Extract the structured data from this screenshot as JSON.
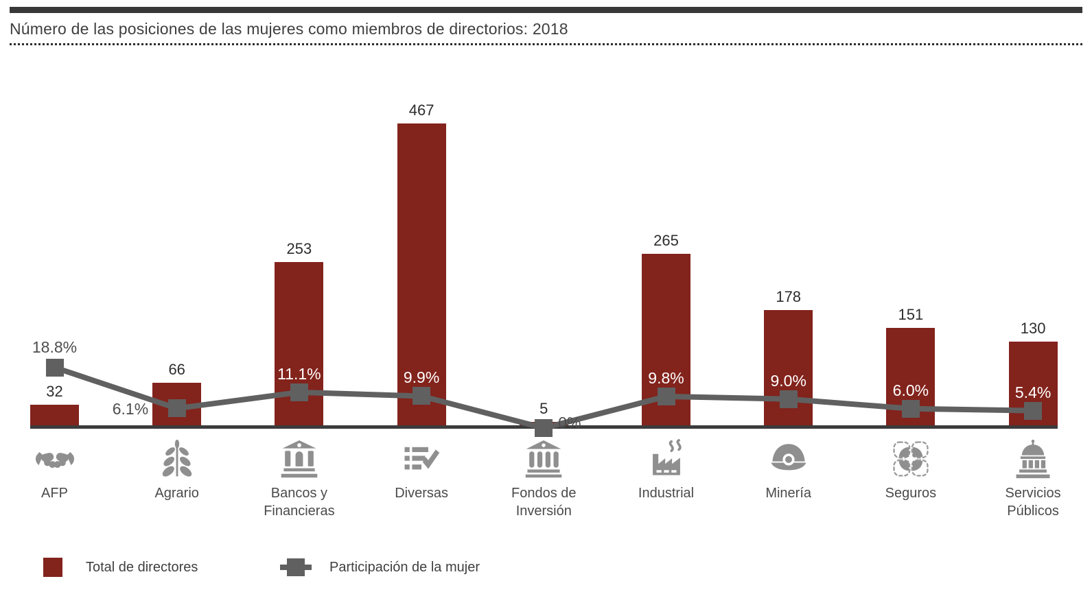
{
  "header": {
    "title": "Número de las posiciones de las mujeres como miembros de directorios: 2018"
  },
  "colors": {
    "bar": "#82231c",
    "line": "#606060",
    "axis": "#3c3c3c",
    "icon": "#8f8f8f",
    "text_dark": "#2d2d2d",
    "pct_outside": "#4d4d4d",
    "pct_on_bar": "#ffffff"
  },
  "legend": {
    "items": [
      {
        "label": "Total de directores",
        "swatch": "red-square"
      },
      {
        "label": "Participación de la mujer",
        "swatch": "gray-line-marker"
      }
    ],
    "position": "bottom"
  },
  "chart_data": {
    "type": "combo-bar-line",
    "title": "Número de las posiciones de las mujeres como miembros de directorios: 2018",
    "categories": [
      "AFP",
      "Agrario",
      "Bancos y Financieras",
      "Diversas",
      "Fondos de Inversión",
      "Industrial",
      "Minería",
      "Seguros",
      "Servicios Públicos"
    ],
    "icons": [
      "handshake-icon",
      "plant-icon",
      "bank-icon",
      "checklist-icon",
      "columns-building-icon",
      "factory-icon",
      "miner-helmet-icon",
      "dashed-segments-icon",
      "capitol-icon"
    ],
    "series": [
      {
        "name": "Total de directores",
        "type": "bar",
        "values": [
          32,
          66,
          253,
          467,
          5,
          265,
          178,
          151,
          130
        ]
      },
      {
        "name": "Participación de la mujer",
        "type": "line",
        "values_pct": [
          18.8,
          6.1,
          11.1,
          9.9,
          0,
          9.8,
          9.0,
          6.0,
          5.4
        ],
        "labels": [
          "18.8%",
          "6.1%",
          "11.1%",
          "9.9%",
          "0%",
          "9.8%",
          "9.0%",
          "6.0%",
          "5.4%"
        ],
        "label_placement": [
          "above-marker",
          "left-of-bar",
          "on-bar",
          "on-bar",
          "right-of-marker",
          "on-bar",
          "on-bar",
          "on-bar",
          "on-bar"
        ]
      }
    ],
    "xlabel": "",
    "ylabel": "",
    "bar_axis_implied_max": 467,
    "grid": false,
    "value_labels_shown": true,
    "legend_position": "bottom"
  }
}
